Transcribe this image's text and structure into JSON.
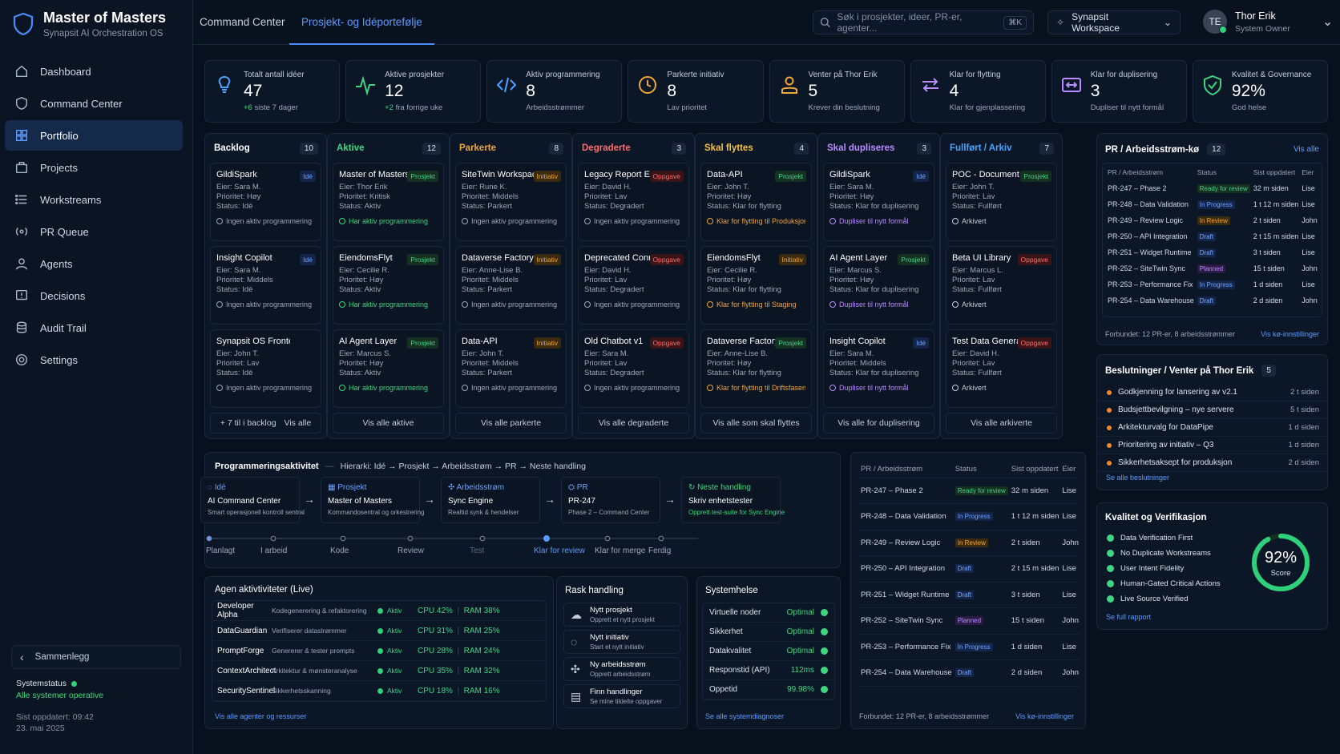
{
  "brand": {
    "title": "Master of Masters",
    "subtitle": "Synapsit AI Orchestration OS"
  },
  "nav": [
    "Dashboard",
    "Command Center",
    "Portfolio",
    "Projects",
    "Workstreams",
    "PR Queue",
    "Agents",
    "Decisions",
    "Audit Trail",
    "Settings"
  ],
  "nav_active": 2,
  "sidebar": {
    "collapse": "Sammenlegg",
    "status_label": "Systemstatus",
    "status_ok": "Alle systemer operative",
    "updated": "Sist oppdatert: 09:42",
    "date": "23. mai 2025"
  },
  "tabs": [
    "Command Center",
    "Prosjekt- og Idéportefølje"
  ],
  "search": {
    "placeholder": "Søk i prosjekter, ideer, PR-er, agenter...",
    "kbd": "⌘K"
  },
  "workspace": "Synapsit Workspace",
  "user": {
    "initials": "TE",
    "name": "Thor Erik",
    "role": "System Owner"
  },
  "kpis": [
    {
      "label": "Totalt antall idéer",
      "value": "47",
      "hl": "+6",
      "sub": "siste 7 dager",
      "color": "#4aa3ff"
    },
    {
      "label": "Aktive prosjekter",
      "value": "12",
      "hl": "+2",
      "sub": "fra forrige uke",
      "color": "#3ed683"
    },
    {
      "label": "Aktiv programmering",
      "value": "8",
      "hl": "",
      "sub": "Arbeidsstrømmer",
      "color": "#4aa3ff"
    },
    {
      "label": "Parkerte initiativ",
      "value": "8",
      "hl": "",
      "sub": "Lav prioritet",
      "color": "#f0a63a"
    },
    {
      "label": "Venter på Thor Erik",
      "value": "5",
      "hl": "",
      "sub": "Krever din beslutning",
      "color": "#f0a63a"
    },
    {
      "label": "Klar for flytting",
      "value": "4",
      "hl": "",
      "sub": "Klar for gjenplassering",
      "color": "#b98cff"
    },
    {
      "label": "Klar for duplisering",
      "value": "3",
      "hl": "",
      "sub": "Dupliser til nytt formål",
      "color": "#b98cff"
    },
    {
      "label": "Kvalitet & Governance",
      "value": "92%",
      "hl": "",
      "sub": "God helse",
      "color": "#3ed683"
    }
  ],
  "columns": [
    {
      "title": "Backlog",
      "count": "10",
      "color": "#ffffff",
      "foot": "+ 7 til i backlog",
      "foot2": "Vis alle",
      "cards": [
        {
          "t": "GildiSpark",
          "b": "Idé",
          "bc": "b-ide",
          "o": "Eier: Sara M.",
          "p": "Prioritet: Høy",
          "s": "Status: Idé",
          "f": "Ingen aktiv programmering",
          "fc": "#9ba8bb"
        },
        {
          "t": "Insight Copilot",
          "b": "Idé",
          "bc": "b-ide",
          "o": "Eier: Sara M.",
          "p": "Prioritet: Middels",
          "s": "Status: Idé",
          "f": "Ingen aktiv programmering",
          "fc": "#9ba8bb"
        },
        {
          "t": "Synapsit OS Frontend",
          "b": "",
          "bc": "",
          "o": "Eier: John T.",
          "p": "Prioritet: Lav",
          "s": "Status: Idé",
          "f": "Ingen aktiv programmering",
          "fc": "#9ba8bb"
        }
      ]
    },
    {
      "title": "Aktive",
      "count": "12",
      "color": "#3ed683",
      "foot": "Vis alle aktive",
      "foot2": "",
      "cards": [
        {
          "t": "Master of Masters",
          "b": "Prosjekt",
          "bc": "b-pro",
          "o": "Eier: Thor Erik",
          "p": "Prioritet: Kritisk",
          "s": "Status: Aktiv",
          "f": "Har aktiv programmering",
          "fc": "#3ed683"
        },
        {
          "t": "EiendomsFlyt",
          "b": "Prosjekt",
          "bc": "b-pro",
          "o": "Eier: Cecilie R.",
          "p": "Prioritet: Høy",
          "s": "Status: Aktiv",
          "f": "Har aktiv programmering",
          "fc": "#3ed683"
        },
        {
          "t": "AI Agent Layer",
          "b": "Prosjekt",
          "bc": "b-pro",
          "o": "Eier: Marcus S.",
          "p": "Prioritet: Høy",
          "s": "Status: Aktiv",
          "f": "Har aktiv programmering",
          "fc": "#3ed683"
        }
      ]
    },
    {
      "title": "Parkerte",
      "count": "8",
      "color": "#f0a63a",
      "foot": "Vis alle parkerte",
      "foot2": "",
      "cards": [
        {
          "t": "SiteTwin Workspace",
          "b": "Initiativ",
          "bc": "b-ini",
          "o": "Eier: Rune K.",
          "p": "Prioritet: Middels",
          "s": "Status: Parkert",
          "f": "Ingen aktiv programmering",
          "fc": "#9ba8bb"
        },
        {
          "t": "Dataverse Factory",
          "b": "Initiativ",
          "bc": "b-ini",
          "o": "Eier: Anne-Lise B.",
          "p": "Prioritet: Middels",
          "s": "Status: Parkert",
          "f": "Ingen aktiv programmering",
          "fc": "#9ba8bb"
        },
        {
          "t": "Data-API",
          "b": "Initiativ",
          "bc": "b-ini",
          "o": "Eier: John T.",
          "p": "Prioritet: Middels",
          "s": "Status: Parkert",
          "f": "Ingen aktiv programmering",
          "fc": "#9ba8bb"
        }
      ]
    },
    {
      "title": "Degraderte",
      "count": "3",
      "color": "#ff6b6b",
      "foot": "Vis alle degraderte",
      "foot2": "",
      "cards": [
        {
          "t": "Legacy Report Engine",
          "b": "Oppgave",
          "bc": "b-opp",
          "o": "Eier: David H.",
          "p": "Prioritet: Lav",
          "s": "Status: Degradert",
          "f": "Ingen aktiv programmering",
          "fc": "#9ba8bb"
        },
        {
          "t": "Deprecated Connector",
          "b": "Oppgave",
          "bc": "b-opp",
          "o": "Eier: David H.",
          "p": "Prioritet: Lav",
          "s": "Status: Degradert",
          "f": "Ingen aktiv programmering",
          "fc": "#9ba8bb"
        },
        {
          "t": "Old Chatbot v1",
          "b": "Oppgave",
          "bc": "b-opp",
          "o": "Eier: Sara M.",
          "p": "Prioritet: Lav",
          "s": "Status: Degradert",
          "f": "Ingen aktiv programmering",
          "fc": "#9ba8bb"
        }
      ]
    },
    {
      "title": "Skal flyttes",
      "count": "4",
      "color": "#f5c242",
      "foot": "Vis alle som skal flyttes",
      "foot2": "",
      "cards": [
        {
          "t": "Data-API",
          "b": "Prosjekt",
          "bc": "b-pro",
          "o": "Eier: John T.",
          "p": "Prioritet: Høy",
          "s": "Status: Klar for flytting",
          "f": "Klar for flytting til Produksjon",
          "fc": "#f0a63a"
        },
        {
          "t": "EiendomsFlyt",
          "b": "Initiativ",
          "bc": "b-ini",
          "o": "Eier: Cecilie R.",
          "p": "Prioritet: Høy",
          "s": "Status: Klar for flytting",
          "f": "Klar for flytting til Staging",
          "fc": "#f0a63a"
        },
        {
          "t": "Dataverse Factory",
          "b": "Prosjekt",
          "bc": "b-pro",
          "o": "Eier: Anne-Lise B.",
          "p": "Prioritet: Høy",
          "s": "Status: Klar for flytting",
          "f": "Klar for flytting til Driftsfasen",
          "fc": "#f0a63a"
        }
      ]
    },
    {
      "title": "Skal dupliseres",
      "count": "3",
      "color": "#b98cff",
      "foot": "Vis alle for duplisering",
      "foot2": "",
      "cards": [
        {
          "t": "GildiSpark",
          "b": "Idé",
          "bc": "b-ide",
          "o": "Eier: Sara M.",
          "p": "Prioritet: Høy",
          "s": "Status: Klar for duplisering",
          "f": "Dupliser til nytt formål",
          "fc": "#b98cff"
        },
        {
          "t": "AI Agent Layer",
          "b": "Prosjekt",
          "bc": "b-pro",
          "o": "Eier: Marcus S.",
          "p": "Prioritet: Høy",
          "s": "Status: Klar for duplisering",
          "f": "Dupliser til nytt formål",
          "fc": "#b98cff"
        },
        {
          "t": "Insight Copilot",
          "b": "Idé",
          "bc": "b-ide",
          "o": "Eier: Sara M.",
          "p": "Prioritet: Middels",
          "s": "Status: Klar for duplisering",
          "f": "Dupliser til nytt formål",
          "fc": "#b98cff"
        }
      ]
    },
    {
      "title": "Fullført / Arkiv",
      "count": "7",
      "color": "#4aa3ff",
      "foot": "Vis alle arkiverte",
      "foot2": "",
      "cards": [
        {
          "t": "POC - Document AI",
          "b": "Prosjekt",
          "bc": "b-pro",
          "o": "Eier: John T.",
          "p": "Prioritet: Lav",
          "s": "Status: Fullført",
          "f": "Arkivert",
          "fc": "#c4cedd"
        },
        {
          "t": "Beta UI Library",
          "b": "Oppgave",
          "bc": "b-opp",
          "o": "Eier: Marcus L.",
          "p": "Prioritet: Lav",
          "s": "Status: Fullført",
          "f": "Arkivert",
          "fc": "#c4cedd"
        },
        {
          "t": "Test Data Generator",
          "b": "Oppgave",
          "bc": "b-opp",
          "o": "Eier: David H.",
          "p": "Prioritet: Lav",
          "s": "Status: Fullført",
          "f": "Arkivert",
          "fc": "#c4cedd"
        }
      ]
    }
  ],
  "prq": {
    "title": "PR / Arbeidsstrøm-kø",
    "count": "12",
    "link": "Vis alle",
    "cols": [
      "PR / Arbeidsstrøm",
      "Status",
      "Sist oppdatert",
      "Eier"
    ],
    "rows": [
      {
        "pr": "PR-247 – Phase 2",
        "st": "Ready for review",
        "sc": "s-rfr",
        "tm": "32 m siden",
        "o": "Lise"
      },
      {
        "pr": "PR-248 – Data Validation",
        "st": "In Progress",
        "sc": "s-ip",
        "tm": "1 t 12 m siden",
        "o": "Lise"
      },
      {
        "pr": "PR-249 – Review Logic",
        "st": "In Review",
        "sc": "s-ir",
        "tm": "2 t siden",
        "o": "John"
      },
      {
        "pr": "PR-250 – API Integration",
        "st": "Draft",
        "sc": "s-dr",
        "tm": "2 t 15 m siden",
        "o": "Lise"
      },
      {
        "pr": "PR-251 – Widget Runtime",
        "st": "Draft",
        "sc": "s-dr",
        "tm": "3 t siden",
        "o": "Lise"
      },
      {
        "pr": "PR-252 – SiteTwin Sync",
        "st": "Planned",
        "sc": "s-pl",
        "tm": "15 t siden",
        "o": "John"
      },
      {
        "pr": "PR-253 – Performance Fix",
        "st": "In Progress",
        "sc": "s-ip",
        "tm": "1 d siden",
        "o": "Lise"
      },
      {
        "pr": "PR-254 – Data Warehouse",
        "st": "Draft",
        "sc": "s-dr",
        "tm": "2 d siden",
        "o": "John"
      }
    ],
    "foot": "Forbundet: 12 PR-er, 8 arbeidsstrømmer",
    "foot_link": "Vis kø-innstillinger"
  },
  "decisions": {
    "title": "Beslutninger / Venter på Thor Erik",
    "count": "5",
    "link": "Se alle beslutninger",
    "rows": [
      {
        "t": "Godkjenning for lansering av v2.1",
        "tm": "2 t siden"
      },
      {
        "t": "Budsjettbevilgning – nye servere",
        "tm": "5 t siden"
      },
      {
        "t": "Arkitekturvalg for DataPipe",
        "tm": "1 d siden"
      },
      {
        "t": "Prioritering av initiativ – Q3",
        "tm": "1 d siden"
      },
      {
        "t": "Sikkerhetsaksept for produksjon",
        "tm": "2 d siden"
      }
    ]
  },
  "quality": {
    "title": "Kvalitet og Verifikasjon",
    "items": [
      "Data Verification First",
      "No Duplicate Workstreams",
      "User Intent Fidelity",
      "Human-Gated Critical Actions",
      "Live Source Verified"
    ],
    "score": "92%",
    "score_label": "Score",
    "score_value": 92,
    "link": "Se full rapport"
  },
  "activity": {
    "title": "Programmeringsaktivitet",
    "hier": "Hierarki: Idé → Prosjekt → Arbeidsstrøm → PR → Neste handling",
    "steps": [
      {
        "k": "Idé",
        "v": "AI Command Center",
        "s": "Smart operasjonell kontroll sentral"
      },
      {
        "k": "Prosjekt",
        "v": "Master of Masters",
        "s": "Kommandosentral og orkestrering"
      },
      {
        "k": "Arbeidsstrøm",
        "v": "Sync Engine",
        "s": "Realtid synk & hendelser"
      },
      {
        "k": "PR",
        "v": "PR-247",
        "s": "Phase 2 – Command Center"
      },
      {
        "k": "Neste handling",
        "v": "Skriv enhetstester",
        "s": "Opprett test-suite for Sync Engine"
      }
    ],
    "timeline": [
      "Planlagt",
      "I arbeid",
      "Kode",
      "Review",
      "Test",
      "Klar for review",
      "Klar for merge",
      "Ferdig"
    ],
    "tl_active": 5
  },
  "agents": {
    "title": "Agen aktivtiviteter (Live)",
    "link": "Vis alle agenter og ressurser",
    "rows": [
      {
        "n": "Developer Alpha",
        "d": "Kodegenerering & refaktorering",
        "s": "Aktiv",
        "c": "CPU  42%",
        "r": "RAM  38%"
      },
      {
        "n": "DataGuardian",
        "d": "Verifiserer datastrømmer",
        "s": "Aktiv",
        "c": "CPU  31%",
        "r": "RAM  25%"
      },
      {
        "n": "PromptForge",
        "d": "Genererer & tester prompts",
        "s": "Aktiv",
        "c": "CPU  28%",
        "r": "RAM  24%"
      },
      {
        "n": "ContextArchitect",
        "d": "Arkitektur & mønsteranalyse",
        "s": "Aktiv",
        "c": "CPU  35%",
        "r": "RAM  32%"
      },
      {
        "n": "SecuritySentinel",
        "d": "Sikkerhetsskanning",
        "s": "Aktiv",
        "c": "CPU  18%",
        "r": "RAM  16%"
      }
    ]
  },
  "quick": {
    "title": "Rask handling",
    "items": [
      {
        "a": "Nytt prosjekt",
        "b": "Opprett et nytt prosjekt"
      },
      {
        "a": "Nytt initiativ",
        "b": "Start et nytt initiativ"
      },
      {
        "a": "Ny arbeidsstrøm",
        "b": "Opprett arbeidsstrøm"
      },
      {
        "a": "Finn handlinger",
        "b": "Se mine tildelte oppgaver"
      }
    ]
  },
  "health": {
    "title": "Systemhelse",
    "link": "Se alle systemdiagnoser",
    "rows": [
      {
        "k": "Virtuelle noder",
        "v": "Optimal"
      },
      {
        "k": "Sikkerhet",
        "v": "Optimal"
      },
      {
        "k": "Datakvalitet",
        "v": "Optimal"
      },
      {
        "k": "Responstid (API)",
        "v": "112ms"
      },
      {
        "k": "Oppetid",
        "v": "99.98%"
      }
    ]
  }
}
